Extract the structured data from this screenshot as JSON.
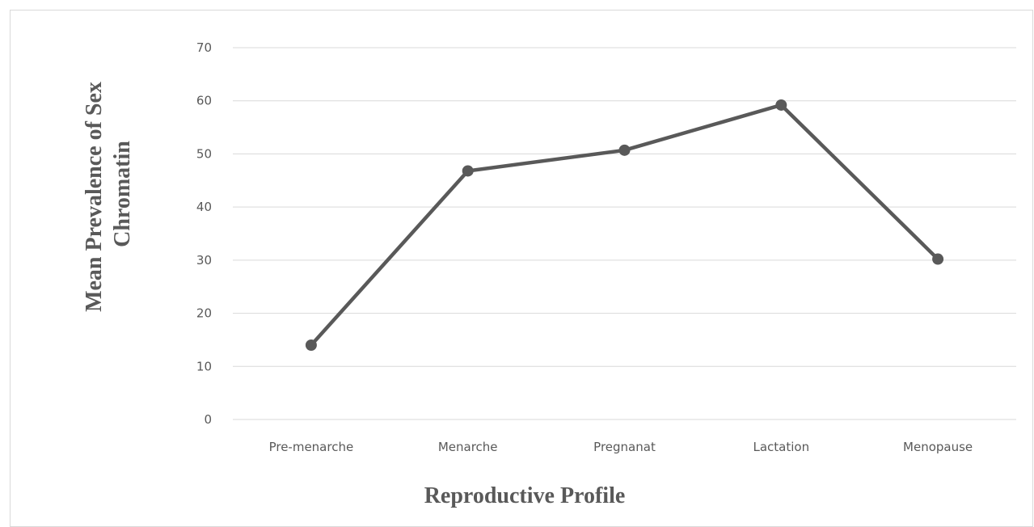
{
  "chart_data": {
    "type": "line",
    "categories": [
      "Pre-menarche",
      "Menarche",
      "Pregnanat",
      "Lactation",
      "Menopause"
    ],
    "series": [
      {
        "values": [
          14,
          46.8,
          50.7,
          59.2,
          30.2
        ]
      }
    ],
    "title": "",
    "xlabel": "Reproductive Profile",
    "ylabel_lines": [
      "Mean Prevalence of Sex",
      "Chromatin"
    ],
    "ylim": [
      0,
      70
    ],
    "yticks": [
      0,
      10,
      20,
      30,
      40,
      50,
      60,
      70
    ],
    "grid": true,
    "legend": "none",
    "colors": {
      "line": "#595959",
      "grid": "#d9d9d9",
      "text": "#595959"
    }
  }
}
